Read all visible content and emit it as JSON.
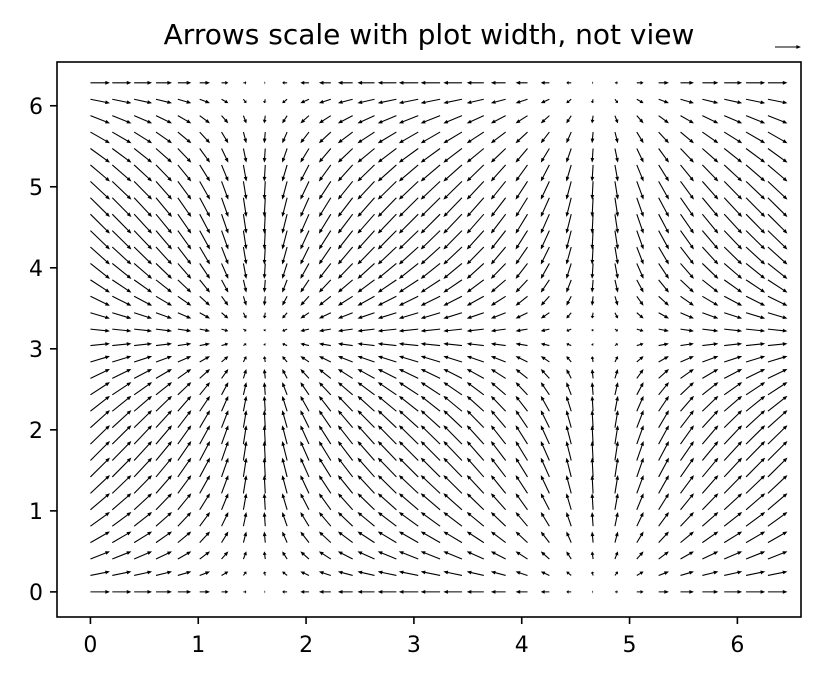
{
  "chart_data": {
    "type": "quiver",
    "title": "Arrows scale with plot width, not view",
    "xlabel": "",
    "ylabel": "",
    "xlim": [
      -0.31,
      6.59
    ],
    "ylim": [
      -0.31,
      6.54
    ],
    "xticks": [
      0,
      1,
      2,
      3,
      4,
      5,
      6
    ],
    "yticks": [
      0,
      1,
      2,
      3,
      4,
      5,
      6
    ],
    "grid": false,
    "x_range": [
      0,
      6.2832
    ],
    "y_range": [
      0,
      6.2832
    ],
    "grid_points_x": 32,
    "grid_points_y": 32,
    "u_formula": "cos(x)",
    "v_formula": "sin(y)",
    "arrow_color": "#000000",
    "key_arrow": "top-right, outside axes"
  }
}
